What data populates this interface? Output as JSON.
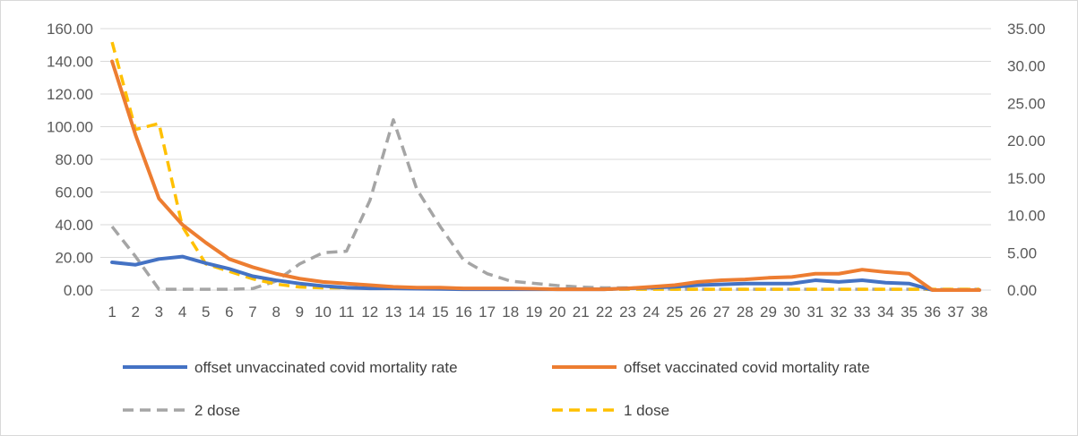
{
  "chart_data": {
    "type": "line",
    "title": "",
    "xlabel": "",
    "ylabel": "",
    "grid": true,
    "legend_position": "bottom",
    "x": [
      1,
      2,
      3,
      4,
      5,
      6,
      7,
      8,
      9,
      10,
      11,
      12,
      13,
      14,
      15,
      16,
      17,
      18,
      19,
      20,
      21,
      22,
      23,
      24,
      25,
      26,
      27,
      28,
      29,
      30,
      31,
      32,
      33,
      34,
      35,
      36,
      37,
      38
    ],
    "y_left": {
      "range": [
        0,
        160
      ],
      "ticks": [
        "0.00",
        "20.00",
        "40.00",
        "60.00",
        "80.00",
        "100.00",
        "120.00",
        "140.00",
        "160.00"
      ]
    },
    "y_right": {
      "range": [
        0,
        35
      ],
      "ticks": [
        "0.00",
        "5.00",
        "10.00",
        "15.00",
        "20.00",
        "25.00",
        "30.00",
        "35.00"
      ]
    },
    "series": [
      {
        "name": "offset unvaccinated covid mortality rate",
        "axis": "left",
        "color": "#4472C4",
        "dash": "solid",
        "values": [
          17,
          15.5,
          19,
          20.5,
          16.5,
          13,
          8.5,
          6,
          4,
          2.5,
          1.5,
          1,
          1,
          0.8,
          0.7,
          0.5,
          0.5,
          0.5,
          0.5,
          0.5,
          0.5,
          0.5,
          1,
          1.5,
          2,
          3,
          3.5,
          4,
          4,
          4,
          6,
          5,
          6,
          4.5,
          4,
          0,
          0,
          0
        ]
      },
      {
        "name": "offset vaccinated covid mortality rate",
        "axis": "left",
        "color": "#ED7D31",
        "dash": "solid",
        "values": [
          140,
          95,
          56,
          40,
          29,
          19,
          14,
          10,
          7,
          5,
          4,
          3,
          2,
          1.5,
          1.5,
          1,
          1,
          1,
          0.8,
          0.5,
          0.5,
          0.5,
          1,
          2,
          3,
          5,
          6,
          6.5,
          7.5,
          8,
          10,
          10,
          12.5,
          11,
          10,
          0,
          0,
          0
        ]
      },
      {
        "name": "2 dose",
        "axis": "right",
        "color": "#A5A5A5",
        "dash": "dashed",
        "values": [
          8.5,
          4.5,
          0.1,
          0.1,
          0.1,
          0.1,
          0.2,
          1.2,
          3.5,
          5,
          5.2,
          12,
          22.8,
          13.5,
          8.5,
          4,
          2.2,
          1.2,
          0.9,
          0.6,
          0.4,
          0.3,
          0.3,
          0.2,
          0.1,
          0.1,
          0.1,
          0.1,
          0.1,
          0.1,
          0.1,
          0.1,
          0.1,
          0.1,
          0.1,
          0.1,
          0.1,
          0.1
        ]
      },
      {
        "name": "1 dose",
        "axis": "right",
        "color": "#FFC000",
        "dash": "dashed",
        "values": [
          33.2,
          21.5,
          22.3,
          8.5,
          3.5,
          2.5,
          1.5,
          0.8,
          0.4,
          0.3,
          0.3,
          0.3,
          0.3,
          0.2,
          0.2,
          0.2,
          0.1,
          0.1,
          0.1,
          0.1,
          0.1,
          0.1,
          0.1,
          0.1,
          0.1,
          0.1,
          0.1,
          0.1,
          0.1,
          0.1,
          0.1,
          0.1,
          0.1,
          0.1,
          0.1,
          0.1,
          0.1,
          0.1
        ]
      }
    ]
  }
}
